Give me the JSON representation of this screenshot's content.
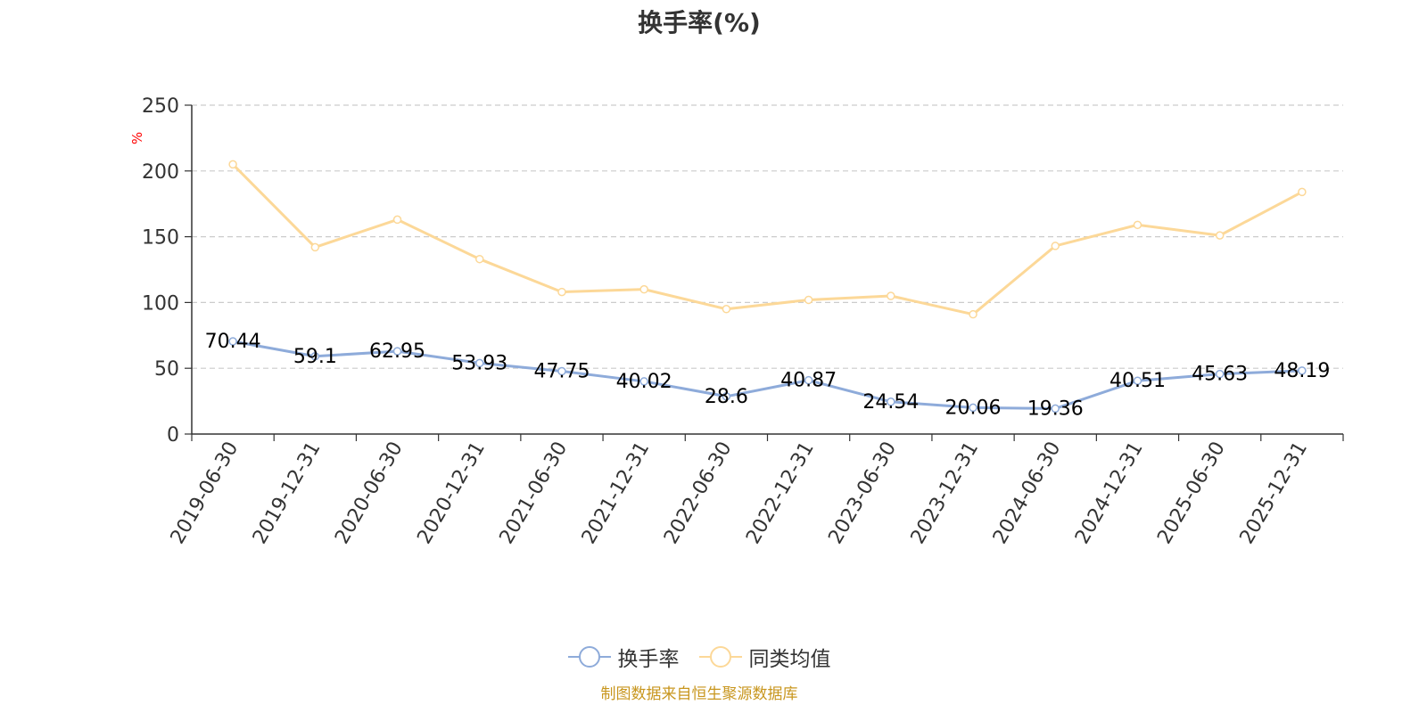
{
  "chart_data": {
    "type": "line",
    "title": "换手率(%)",
    "ylabel": "%",
    "xlabel": "",
    "ylim": [
      0,
      250
    ],
    "yticks": [
      0,
      50,
      100,
      150,
      200,
      250
    ],
    "grid": "horizontal dashed",
    "legend_position": "bottom-center",
    "categories": [
      "2019-06-30",
      "2019-12-31",
      "2020-06-30",
      "2020-12-31",
      "2021-06-30",
      "2021-12-31",
      "2022-06-30",
      "2022-12-31",
      "2023-06-30",
      "2023-12-31",
      "2024-06-30",
      "2024-12-31",
      "2025-06-30",
      "2025-12-31"
    ],
    "series": [
      {
        "name": "换手率",
        "color": "#8eabda",
        "show_labels": true,
        "values": [
          70.44,
          59.1,
          62.95,
          53.93,
          47.75,
          40.02,
          28.6,
          40.87,
          24.54,
          20.06,
          19.36,
          40.51,
          45.63,
          48.19
        ]
      },
      {
        "name": "同类均值",
        "color": "#fcd898",
        "show_labels": false,
        "values": [
          205,
          142,
          163,
          133,
          108,
          110,
          95,
          102,
          105,
          91,
          143,
          159,
          151,
          184
        ]
      }
    ]
  },
  "footer": {
    "source": "制图数据来自恒生聚源数据库"
  },
  "colors": {
    "axis": "#333333",
    "grid": "#cccccc",
    "source_text": "#c8961e",
    "unit_text": "#ff0000"
  }
}
